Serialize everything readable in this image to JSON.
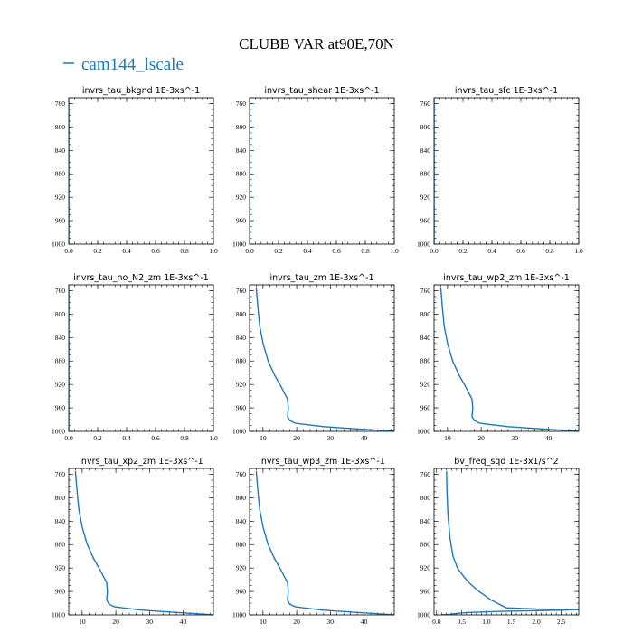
{
  "figure": {
    "title": "CLUBB VAR at90E,70N",
    "legend": [
      {
        "label": "cam144_lscale",
        "color": "#1f77b4"
      }
    ]
  },
  "colors": {
    "series": "#1f77b4",
    "axes": "#000000"
  },
  "chart_data": [
    {
      "type": "line",
      "title": "invrs_tau_bkgnd   1E-3xs^-1",
      "xlim": [
        0,
        1
      ],
      "ylim": [
        1000,
        750
      ],
      "xticks": [
        0.0,
        0.2,
        0.4,
        0.6,
        0.8,
        1.0
      ],
      "xtick_labels": [
        "0.0",
        "0.2",
        "0.4",
        "0.6",
        "0.8",
        "1.0"
      ],
      "yticks": [
        760,
        800,
        840,
        880,
        920,
        960,
        1000
      ],
      "series": [
        {
          "x": [
            0,
            0,
            0,
            0,
            0,
            0,
            0
          ],
          "y": [
            755,
            800,
            850,
            900,
            950,
            980,
            1000
          ]
        }
      ]
    },
    {
      "type": "line",
      "title": "invrs_tau_shear   1E-3xs^-1",
      "xlim": [
        0,
        1
      ],
      "ylim": [
        1000,
        750
      ],
      "xticks": [
        0.0,
        0.2,
        0.4,
        0.6,
        0.8,
        1.0
      ],
      "xtick_labels": [
        "0.0",
        "0.2",
        "0.4",
        "0.6",
        "0.8",
        "1.0"
      ],
      "yticks": [
        760,
        800,
        840,
        880,
        920,
        960,
        1000
      ],
      "series": [
        {
          "x": [
            0,
            0,
            0,
            0,
            0,
            0,
            0
          ],
          "y": [
            755,
            800,
            850,
            900,
            950,
            980,
            1000
          ]
        }
      ]
    },
    {
      "type": "line",
      "title": "invrs_tau_sfc   1E-3xs^-1",
      "xlim": [
        0,
        1
      ],
      "ylim": [
        1000,
        750
      ],
      "xticks": [
        0.0,
        0.2,
        0.4,
        0.6,
        0.8,
        1.0
      ],
      "xtick_labels": [
        "0.0",
        "0.2",
        "0.4",
        "0.6",
        "0.8",
        "1.0"
      ],
      "yticks": [
        760,
        800,
        840,
        880,
        920,
        960,
        1000
      ],
      "series": [
        {
          "x": [
            0,
            0,
            0,
            0,
            0,
            0,
            0
          ],
          "y": [
            755,
            800,
            850,
            900,
            950,
            980,
            1000
          ]
        }
      ]
    },
    {
      "type": "line",
      "title": "invrs_tau_no_N2_zm   1E-3xs^-1",
      "xlim": [
        0,
        1
      ],
      "ylim": [
        1000,
        750
      ],
      "xticks": [
        0.0,
        0.2,
        0.4,
        0.6,
        0.8,
        1.0
      ],
      "xtick_labels": [
        "0.0",
        "0.2",
        "0.4",
        "0.6",
        "0.8",
        "1.0"
      ],
      "yticks": [
        760,
        800,
        840,
        880,
        920,
        960,
        1000
      ],
      "series": [
        {
          "x": [
            0,
            0,
            0,
            0,
            0,
            0,
            0
          ],
          "y": [
            755,
            800,
            850,
            900,
            950,
            980,
            1000
          ]
        }
      ]
    },
    {
      "type": "line",
      "title": "invrs_tau_zm   1E-3xs^-1",
      "xlim": [
        6,
        49
      ],
      "ylim": [
        1000,
        750
      ],
      "xticks": [
        10,
        20,
        30,
        40
      ],
      "xtick_labels": [
        "10",
        "20",
        "30",
        "40"
      ],
      "yticks": [
        760,
        800,
        840,
        880,
        920,
        960,
        1000
      ],
      "series": [
        {
          "x": [
            8,
            8.5,
            9,
            10,
            11.5,
            13.5,
            15.5,
            17.3,
            17.5,
            17.3,
            18,
            19.5,
            22,
            28,
            36,
            44,
            49
          ],
          "y": [
            755,
            790,
            820,
            850,
            880,
            905,
            925,
            945,
            960,
            975,
            982,
            986,
            988,
            992,
            995,
            998,
            1000
          ]
        }
      ]
    },
    {
      "type": "line",
      "title": "invrs_tau_wp2_zm   1E-3xs^-1",
      "xlim": [
        6,
        49
      ],
      "ylim": [
        1000,
        750
      ],
      "xticks": [
        10,
        20,
        30,
        40
      ],
      "xtick_labels": [
        "10",
        "20",
        "30",
        "40"
      ],
      "yticks": [
        760,
        800,
        840,
        880,
        920,
        960,
        1000
      ],
      "series": [
        {
          "x": [
            8,
            8.5,
            9,
            10,
            11.5,
            13.5,
            15.5,
            17.3,
            17.5,
            17.3,
            18,
            19.5,
            22,
            28,
            36,
            44,
            49
          ],
          "y": [
            755,
            790,
            820,
            850,
            880,
            905,
            925,
            945,
            960,
            975,
            982,
            986,
            988,
            992,
            995,
            998,
            1000
          ]
        }
      ]
    },
    {
      "type": "line",
      "title": "invrs_tau_xp2_zm   1E-3xs^-1",
      "xlim": [
        6,
        49
      ],
      "ylim": [
        1000,
        750
      ],
      "xticks": [
        10,
        20,
        30,
        40
      ],
      "xtick_labels": [
        "10",
        "20",
        "30",
        "40"
      ],
      "yticks": [
        760,
        800,
        840,
        880,
        920,
        960,
        1000
      ],
      "series": [
        {
          "x": [
            8,
            8.5,
            9,
            10,
            11.5,
            13.5,
            15.5,
            17.3,
            17.5,
            17.3,
            18,
            19.5,
            22,
            28,
            36,
            44,
            49
          ],
          "y": [
            755,
            790,
            820,
            850,
            880,
            905,
            925,
            945,
            960,
            975,
            982,
            986,
            988,
            992,
            995,
            998,
            1000
          ]
        }
      ]
    },
    {
      "type": "line",
      "title": "invrs_tau_wp3_zm   1E-3xs^-1",
      "xlim": [
        6,
        49
      ],
      "ylim": [
        1000,
        750
      ],
      "xticks": [
        10,
        20,
        30,
        40
      ],
      "xtick_labels": [
        "10",
        "20",
        "30",
        "40"
      ],
      "yticks": [
        760,
        800,
        840,
        880,
        920,
        960,
        1000
      ],
      "series": [
        {
          "x": [
            8,
            8.5,
            9,
            10,
            11.5,
            13.5,
            15.5,
            17.3,
            17.5,
            17.3,
            18,
            19.5,
            22,
            28,
            36,
            44,
            49
          ],
          "y": [
            755,
            790,
            820,
            850,
            880,
            905,
            925,
            945,
            960,
            975,
            982,
            986,
            988,
            992,
            995,
            998,
            1000
          ]
        }
      ]
    },
    {
      "type": "line",
      "title": "bv_freq_sqd   1E-3x1/s^2",
      "xlim": [
        -0.05,
        2.85
      ],
      "ylim": [
        1000,
        750
      ],
      "xticks": [
        0.0,
        0.5,
        1.0,
        1.5,
        2.0,
        2.5
      ],
      "xtick_labels": [
        "0.0",
        "0.5",
        "1.0",
        "1.5",
        "2.0",
        "2.5"
      ],
      "yticks": [
        760,
        800,
        840,
        880,
        920,
        960,
        1000
      ],
      "series": [
        {
          "x": [
            0.2,
            0.21,
            0.23,
            0.27,
            0.33,
            0.42,
            0.55,
            0.65,
            0.85,
            1.1,
            1.4,
            2.0,
            2.85,
            2.5,
            1.3,
            0.6,
            0.25,
            0.1
          ],
          "y": [
            755,
            790,
            830,
            870,
            900,
            920,
            935,
            945,
            960,
            975,
            988,
            990,
            991,
            992,
            994,
            996,
            999,
            1000
          ]
        }
      ]
    }
  ]
}
